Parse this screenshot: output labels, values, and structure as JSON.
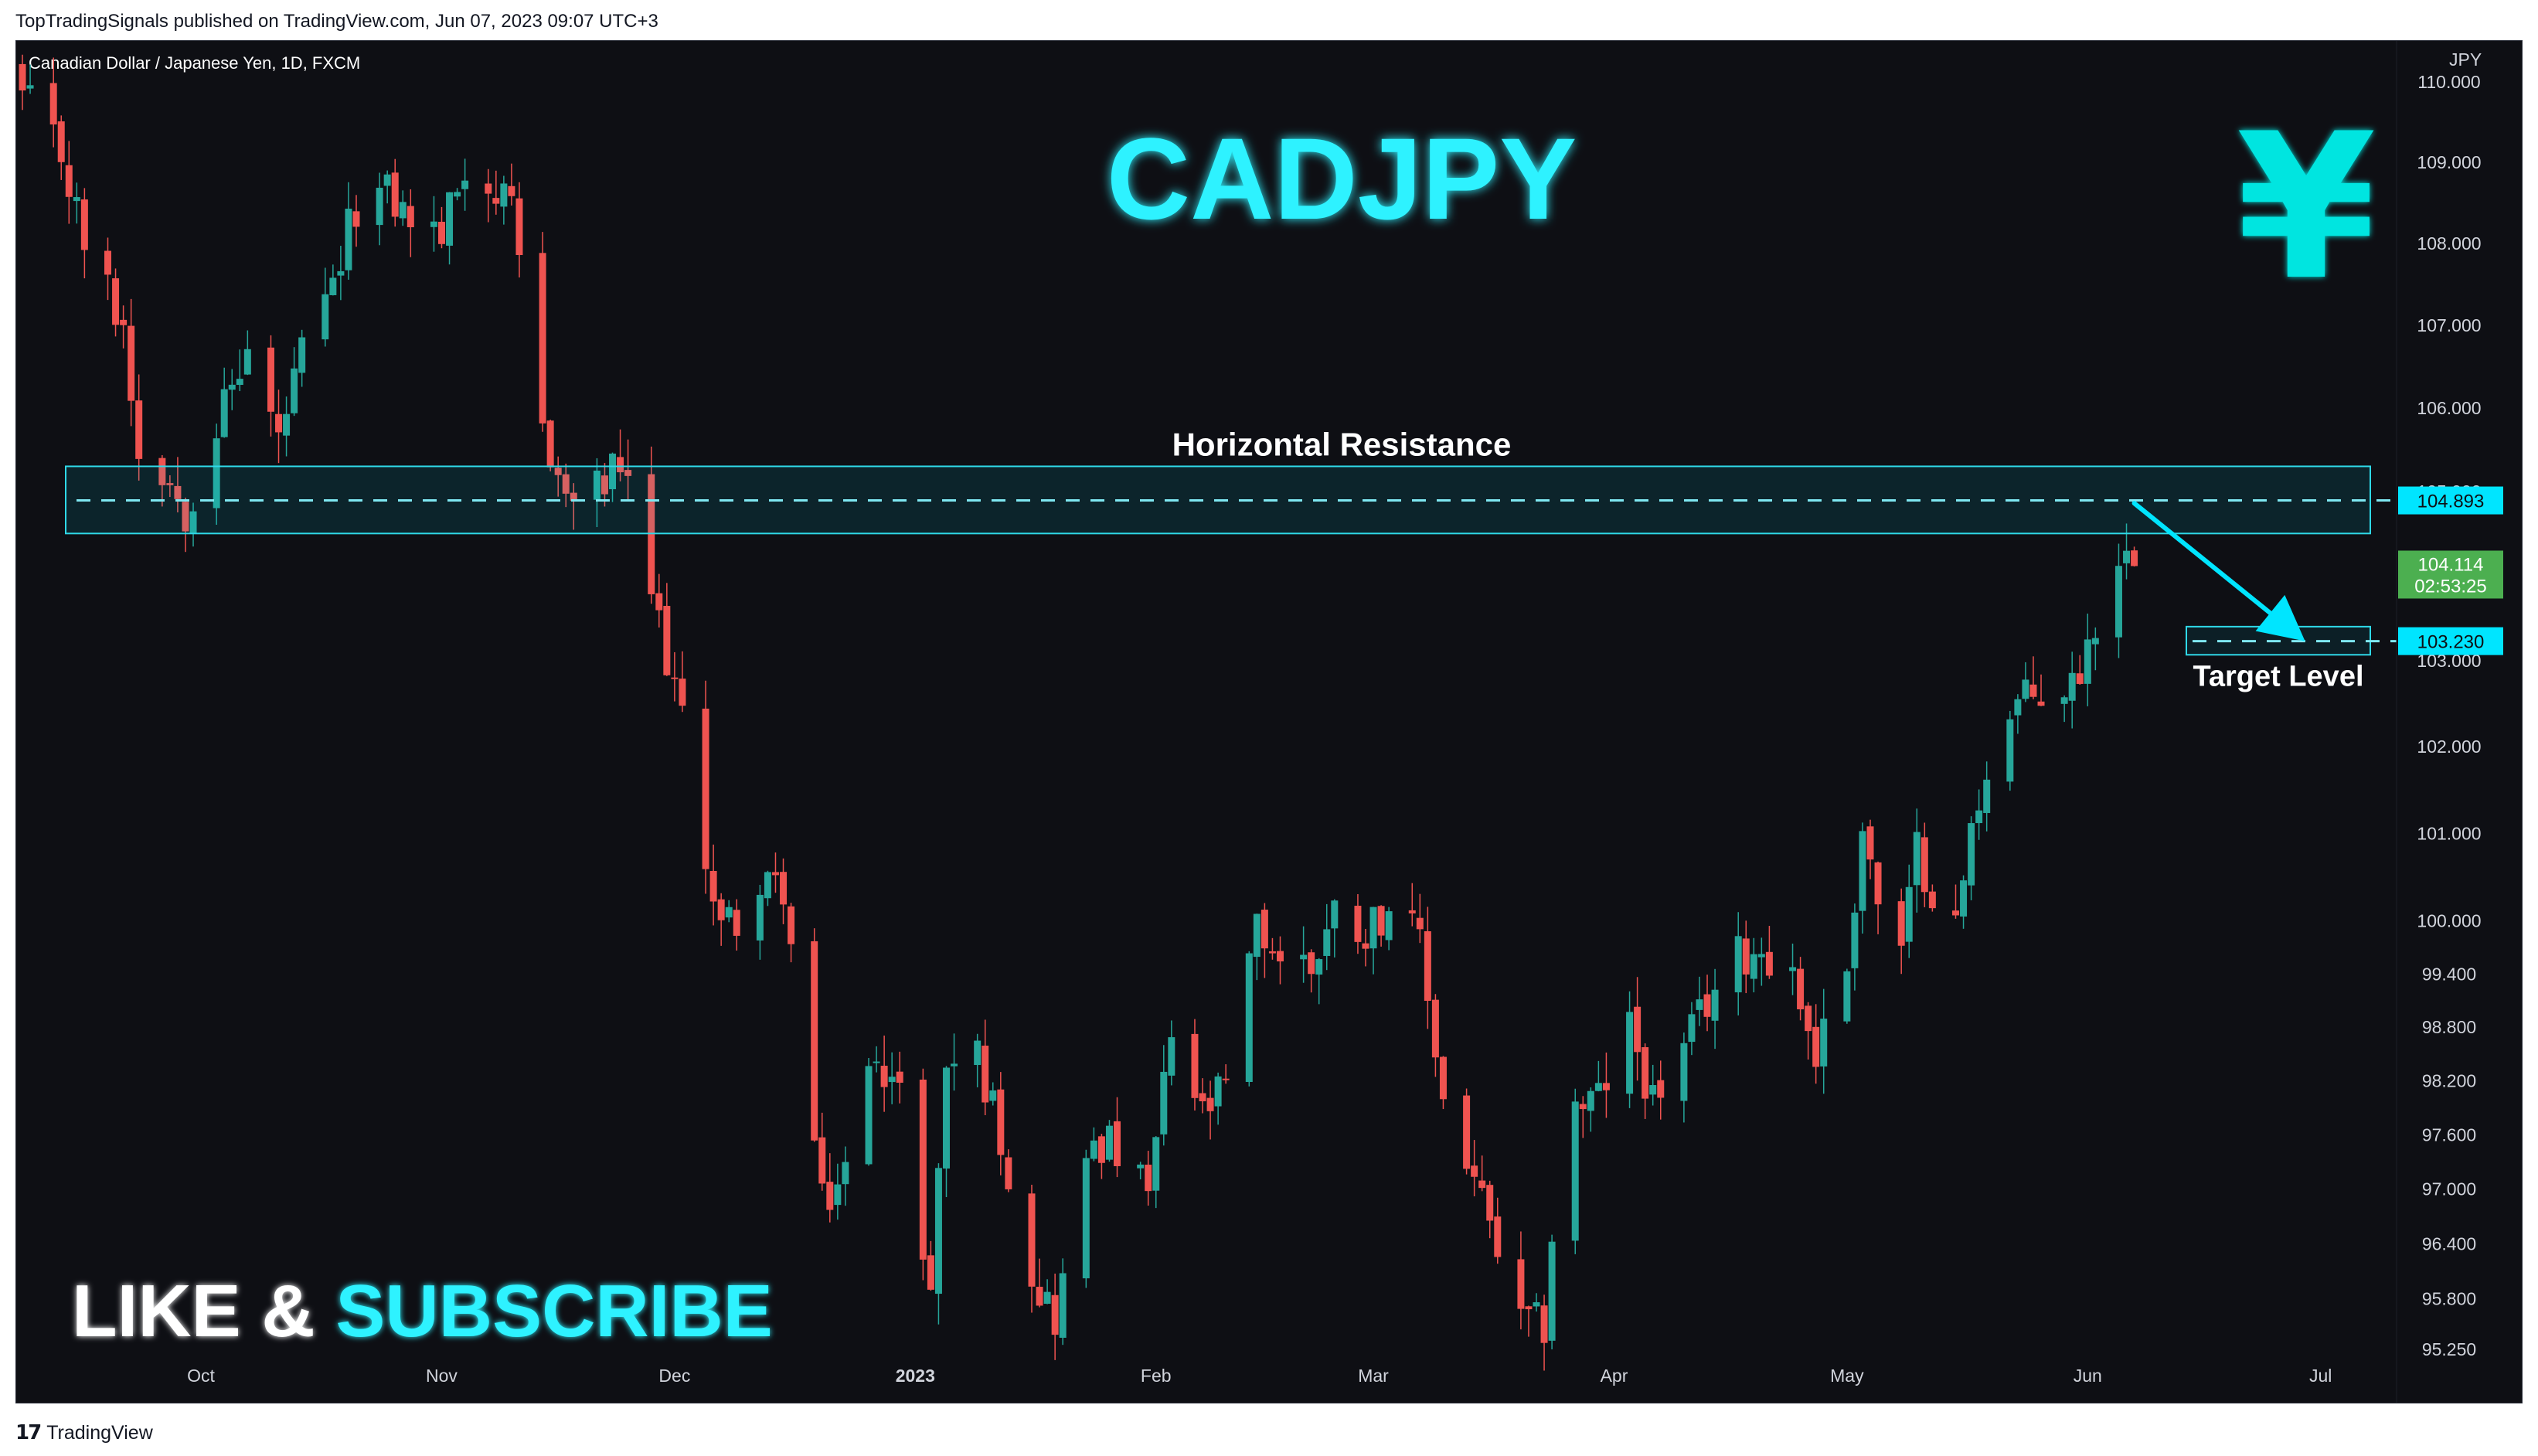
{
  "header": {
    "published_by": "TopTradingSignals published on TradingView.com, Jun 07, 2023 09:07 UTC+3"
  },
  "footer": {
    "brand_name": "TradingView"
  },
  "chart_data": {
    "type": "candlestick",
    "symbol_label": "Canadian Dollar / Japanese Yen, 1D, FXCM",
    "title": "CADJPY",
    "currency_symbol": "¥",
    "price_axis_unit": "JPY",
    "ylim": [
      94.9,
      110.3
    ],
    "price_scale": "log",
    "y_ticks": [
      {
        "value": 110.0,
        "label": "110.000"
      },
      {
        "value": 109.0,
        "label": "109.000"
      },
      {
        "value": 108.0,
        "label": "108.000"
      },
      {
        "value": 107.0,
        "label": "107.000"
      },
      {
        "value": 106.0,
        "label": "106.000"
      },
      {
        "value": 105.0,
        "label": "105.000"
      },
      {
        "value": 103.0,
        "label": "103.000"
      },
      {
        "value": 102.0,
        "label": "102.000"
      },
      {
        "value": 101.0,
        "label": "101.000"
      },
      {
        "value": 100.0,
        "label": "100.000"
      },
      {
        "value": 99.4,
        "label": "99.400"
      },
      {
        "value": 98.8,
        "label": "98.800"
      },
      {
        "value": 98.2,
        "label": "98.200"
      },
      {
        "value": 97.6,
        "label": "97.600"
      },
      {
        "value": 97.0,
        "label": "97.000"
      },
      {
        "value": 96.4,
        "label": "96.400"
      },
      {
        "value": 95.8,
        "label": "95.800"
      },
      {
        "value": 95.25,
        "label": "95.250"
      }
    ],
    "x_ticks": [
      {
        "date": "2022-10-01",
        "label": "Oct"
      },
      {
        "date": "2022-11-01",
        "label": "Nov"
      },
      {
        "date": "2022-12-01",
        "label": "Dec"
      },
      {
        "date": "2023-01-01",
        "label": "2023"
      },
      {
        "date": "2023-02-01",
        "label": "Feb"
      },
      {
        "date": "2023-03-01",
        "label": "Mar"
      },
      {
        "date": "2023-04-01",
        "label": "Apr"
      },
      {
        "date": "2023-05-01",
        "label": "May"
      },
      {
        "date": "2023-06-01",
        "label": "Jun"
      },
      {
        "date": "2023-07-01",
        "label": "Jul"
      }
    ],
    "x_range": [
      "2022-09-08",
      "2023-07-08"
    ],
    "series_dates": [
      "2022-09-08",
      "2023-06-07"
    ],
    "keypoints": [
      [
        "2022-09-08",
        109.8
      ],
      [
        "2022-09-13",
        109.1
      ],
      [
        "2022-09-16",
        108.0
      ],
      [
        "2022-09-21",
        107.0
      ],
      [
        "2022-09-23",
        105.5
      ],
      [
        "2022-09-26",
        105.3
      ],
      [
        "2022-09-29",
        104.8
      ],
      [
        "2022-10-03",
        105.8
      ],
      [
        "2022-10-07",
        106.7
      ],
      [
        "2022-10-11",
        105.6
      ],
      [
        "2022-10-14",
        106.6
      ],
      [
        "2022-10-18",
        107.4
      ],
      [
        "2022-10-21",
        108.5
      ],
      [
        "2022-10-25",
        108.6
      ],
      [
        "2022-10-28",
        108.3
      ],
      [
        "2022-11-01",
        108.1
      ],
      [
        "2022-11-04",
        109.0
      ],
      [
        "2022-11-08",
        108.6
      ],
      [
        "2022-11-10",
        108.3
      ],
      [
        "2022-11-14",
        105.8
      ],
      [
        "2022-11-17",
        104.9
      ],
      [
        "2022-11-21",
        105.0
      ],
      [
        "2022-11-24",
        105.3
      ],
      [
        "2022-11-28",
        103.8
      ],
      [
        "2022-12-01",
        102.7
      ],
      [
        "2022-12-05",
        100.8
      ],
      [
        "2022-12-07",
        99.9
      ],
      [
        "2022-12-12",
        100.3
      ],
      [
        "2022-12-15",
        100.4
      ],
      [
        "2022-12-20",
        96.8
      ],
      [
        "2022-12-23",
        97.2
      ],
      [
        "2022-12-27",
        98.6
      ],
      [
        "2022-12-30",
        98.0
      ],
      [
        "2023-01-03",
        95.9
      ],
      [
        "2023-01-05",
        98.4
      ],
      [
        "2023-01-09",
        98.5
      ],
      [
        "2023-01-12",
        97.6
      ],
      [
        "2023-01-16",
        96.1
      ],
      [
        "2023-01-19",
        95.6
      ],
      [
        "2023-01-24",
        97.6
      ],
      [
        "2023-01-27",
        97.4
      ],
      [
        "2023-01-31",
        96.9
      ],
      [
        "2023-02-03",
        98.7
      ],
      [
        "2023-02-07",
        97.8
      ],
      [
        "2023-02-10",
        98.1
      ],
      [
        "2023-02-14",
        99.9
      ],
      [
        "2023-02-17",
        99.6
      ],
      [
        "2023-02-21",
        99.5
      ],
      [
        "2023-02-24",
        100.1
      ],
      [
        "2023-02-28",
        99.9
      ],
      [
        "2023-03-03",
        100.2
      ],
      [
        "2023-03-07",
        99.7
      ],
      [
        "2023-03-10",
        98.0
      ],
      [
        "2023-03-14",
        97.1
      ],
      [
        "2023-03-17",
        96.3
      ],
      [
        "2023-03-20",
        95.5
      ],
      [
        "2023-03-23",
        95.5
      ],
      [
        "2023-03-24",
        96.5
      ],
      [
        "2023-03-27",
        97.9
      ],
      [
        "2023-03-30",
        98.0
      ],
      [
        "2023-04-03",
        98.8
      ],
      [
        "2023-04-06",
        98.0
      ],
      [
        "2023-04-10",
        98.5
      ],
      [
        "2023-04-13",
        99.1
      ],
      [
        "2023-04-17",
        99.6
      ],
      [
        "2023-04-20",
        99.7
      ],
      [
        "2023-04-24",
        99.4
      ],
      [
        "2023-04-27",
        98.5
      ],
      [
        "2023-05-01",
        99.5
      ],
      [
        "2023-05-03",
        101.1
      ],
      [
        "2023-05-05",
        100.2
      ],
      [
        "2023-05-08",
        99.6
      ],
      [
        "2023-05-10",
        100.8
      ],
      [
        "2023-05-12",
        100.4
      ],
      [
        "2023-05-15",
        99.9
      ],
      [
        "2023-05-17",
        101.0
      ],
      [
        "2023-05-19",
        101.8
      ],
      [
        "2023-05-23",
        102.5
      ],
      [
        "2023-05-26",
        102.6
      ],
      [
        "2023-05-30",
        102.7
      ],
      [
        "2023-06-01",
        103.2
      ],
      [
        "2023-06-05",
        104.3
      ],
      [
        "2023-06-07",
        104.114
      ]
    ],
    "horizontal_resistance": {
      "label": "Horizontal Resistance",
      "zone": [
        104.5,
        105.3
      ],
      "level": 104.893,
      "level_label": "104.893"
    },
    "target_level": {
      "label": "Target Level",
      "zone": [
        103.07,
        103.4
      ],
      "level": 103.23,
      "level_label": "103.230",
      "arrow_from": {
        "date": "2023-06-07",
        "price": 104.86
      },
      "arrow_to": {
        "date": "2023-06-29",
        "price": 103.23
      }
    },
    "last_price": {
      "price": 104.114,
      "price_label": "104.114",
      "countdown": "02:53:25"
    },
    "promo_text": {
      "part1": "LIKE & ",
      "part2": "SUBSCRIBE"
    },
    "colors": {
      "background": "#0e0f14",
      "up": "#26a69a",
      "down": "#ef5350",
      "accent": "#00e5ff",
      "axis_text": "#d1d4dc",
      "price_badge": "#4caf50"
    }
  }
}
